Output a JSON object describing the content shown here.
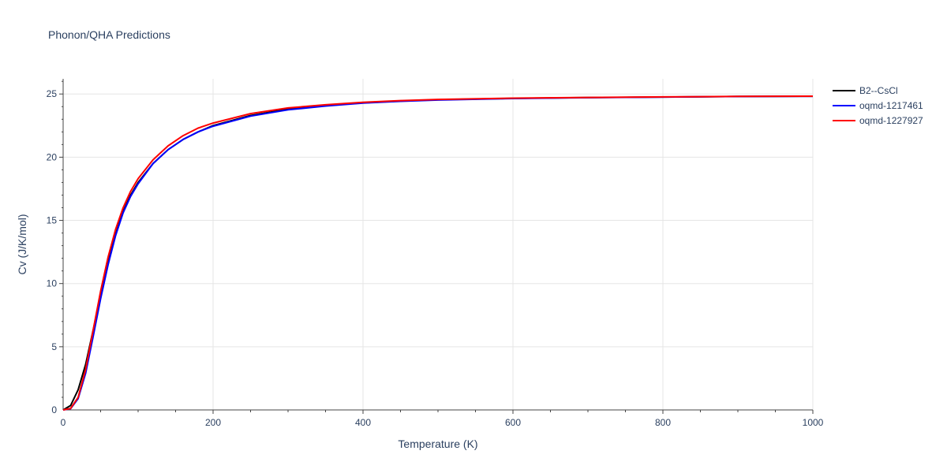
{
  "chart_data": {
    "type": "line",
    "title": "Phonon/QHA Predictions",
    "xlabel": "Temperature (K)",
    "ylabel": "Cv (J/K/mol)",
    "xlim": [
      0,
      1000
    ],
    "ylim": [
      0,
      26.2
    ],
    "grid": true,
    "legend_position": "top-right",
    "x_ticks": [
      0,
      200,
      400,
      600,
      800,
      1000
    ],
    "x_tick_labels": [
      "0",
      "200",
      "400",
      "600",
      "800",
      "1000"
    ],
    "y_ticks": [
      0,
      5,
      10,
      15,
      20,
      25
    ],
    "y_tick_labels": [
      "0",
      "5",
      "10",
      "15",
      "20",
      "25"
    ],
    "series": [
      {
        "name": "B2--CsCl",
        "color": "#000000",
        "x": [
          0,
          10,
          20,
          30,
          40,
          50,
          60,
          70,
          80,
          90,
          100,
          120,
          140,
          160,
          180,
          200,
          250,
          300,
          350,
          400,
          450,
          500,
          600,
          700,
          800,
          900,
          1000
        ],
        "y": [
          0,
          0.35,
          1.6,
          3.6,
          6.3,
          9.0,
          11.7,
          13.9,
          15.7,
          17.0,
          18.0,
          19.5,
          20.6,
          21.4,
          22.0,
          22.5,
          23.3,
          23.8,
          24.1,
          24.3,
          24.45,
          24.55,
          24.65,
          24.72,
          24.76,
          24.8,
          24.82
        ]
      },
      {
        "name": "oqmd-1217461",
        "color": "#0000ff",
        "x": [
          0,
          10,
          20,
          30,
          40,
          50,
          60,
          70,
          80,
          90,
          100,
          120,
          140,
          160,
          180,
          200,
          250,
          300,
          350,
          400,
          450,
          500,
          600,
          700,
          800,
          900,
          1000
        ],
        "y": [
          0,
          0.1,
          0.9,
          2.9,
          5.8,
          8.8,
          11.5,
          13.8,
          15.6,
          16.9,
          17.9,
          19.5,
          20.6,
          21.4,
          22.0,
          22.45,
          23.25,
          23.75,
          24.05,
          24.28,
          24.42,
          24.52,
          24.64,
          24.71,
          24.76,
          24.8,
          24.82
        ]
      },
      {
        "name": "oqmd-1227927",
        "color": "#ff0000",
        "x": [
          0,
          10,
          20,
          30,
          40,
          50,
          60,
          70,
          80,
          90,
          100,
          120,
          140,
          160,
          180,
          200,
          250,
          300,
          350,
          400,
          450,
          500,
          600,
          700,
          800,
          900,
          1000
        ],
        "y": [
          0,
          0.12,
          1.0,
          3.2,
          6.3,
          9.4,
          12.1,
          14.3,
          16.0,
          17.3,
          18.3,
          19.8,
          20.9,
          21.7,
          22.3,
          22.7,
          23.45,
          23.9,
          24.15,
          24.35,
          24.48,
          24.57,
          24.67,
          24.73,
          24.77,
          24.81,
          24.83
        ]
      }
    ]
  }
}
